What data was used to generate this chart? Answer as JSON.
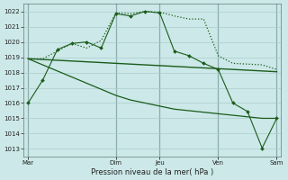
{
  "background_color": "#cce8e8",
  "grid_color": "#aacccc",
  "line_color": "#1a5c1a",
  "xlabel": "Pression niveau de la mer( hPa )",
  "ylim": [
    1012.5,
    1022.5
  ],
  "yticks": [
    1013,
    1014,
    1015,
    1016,
    1017,
    1018,
    1019,
    1020,
    1021,
    1022
  ],
  "xtick_labels": [
    "Mar",
    "",
    "Dim",
    "Jeu",
    "",
    "Ven",
    "",
    "Sam"
  ],
  "xtick_positions": [
    0,
    3,
    6,
    9,
    11,
    13,
    15,
    17
  ],
  "vline_positions": [
    0,
    6,
    9,
    13,
    17
  ],
  "num_points": 18,
  "line1_dotted_x": [
    0,
    1,
    2,
    3,
    4,
    5,
    6,
    7,
    8,
    9,
    10,
    11,
    12,
    13,
    14,
    15,
    16,
    17
  ],
  "line1_dotted_y": [
    1018.9,
    1018.9,
    1019.4,
    1019.9,
    1019.6,
    1020.1,
    1021.9,
    1021.85,
    1022.0,
    1021.95,
    1021.7,
    1021.5,
    1021.5,
    1019.1,
    1018.6,
    1018.55,
    1018.5,
    1018.2
  ],
  "line2_flat_x": [
    0,
    1,
    2,
    3,
    4,
    5,
    6,
    7,
    8,
    9,
    10,
    11,
    12,
    13,
    14,
    15,
    16,
    17
  ],
  "line2_flat_y": [
    1018.9,
    1018.85,
    1018.8,
    1018.75,
    1018.7,
    1018.65,
    1018.6,
    1018.55,
    1018.5,
    1018.45,
    1018.4,
    1018.35,
    1018.3,
    1018.25,
    1018.2,
    1018.15,
    1018.1,
    1018.05
  ],
  "line3_diag_x": [
    0,
    1,
    2,
    3,
    4,
    5,
    6,
    7,
    8,
    9,
    10,
    11,
    12,
    13,
    14,
    15,
    16,
    17
  ],
  "line3_diag_y": [
    1018.9,
    1018.5,
    1018.1,
    1017.7,
    1017.3,
    1016.9,
    1016.5,
    1016.2,
    1016.0,
    1015.8,
    1015.6,
    1015.5,
    1015.4,
    1015.3,
    1015.2,
    1015.1,
    1015.0,
    1015.0
  ],
  "line4_markers_x": [
    0,
    1,
    2,
    3,
    4,
    5,
    6,
    7,
    8,
    9,
    10,
    11,
    12,
    13,
    14,
    15,
    16,
    17
  ],
  "line4_markers_y": [
    1016.0,
    1017.5,
    1019.5,
    1019.9,
    1020.0,
    1019.6,
    1021.85,
    1021.7,
    1022.0,
    1021.9,
    1019.4,
    1019.1,
    1018.6,
    1018.2,
    1016.0,
    1015.45,
    1013.05,
    1015.0
  ]
}
